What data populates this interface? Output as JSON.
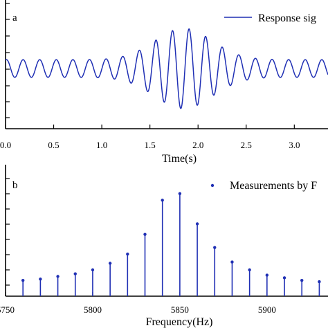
{
  "chart_data": [
    {
      "type": "line",
      "panel_label": "a",
      "xlabel": "Time(s)",
      "ylabel": "",
      "xlim": [
        0.0,
        3.35
      ],
      "x_ticks": [
        "0.0",
        "0.5",
        "1.0",
        "1.5",
        "2.0",
        "2.5",
        "3.0"
      ],
      "x_tick_values": [
        0.0,
        0.5,
        1.0,
        1.5,
        2.0,
        2.5,
        3.0
      ],
      "series": [
        {
          "name": "Response sig",
          "color": "#1f2fb4",
          "frequency_hz": 5.8,
          "approx_envelope": "amplitude ~0.25 at edges rising to ~1.0 near t=1.85 s"
        }
      ],
      "legend": "top-right",
      "grid": false
    },
    {
      "type": "stem",
      "panel_label": "b",
      "xlabel": "Frequency(Hz)",
      "ylabel": "",
      "xlim": [
        5750,
        5935
      ],
      "x_ticks": [
        "5750",
        "5800",
        "5850",
        "5900"
      ],
      "x_tick_values": [
        5750,
        5800,
        5850,
        5900
      ],
      "categories": [
        5760,
        5770,
        5780,
        5790,
        5800,
        5810,
        5820,
        5830,
        5840,
        5850,
        5860,
        5870,
        5880,
        5890,
        5900,
        5910,
        5920,
        5930
      ],
      "values": [
        0.12,
        0.13,
        0.15,
        0.17,
        0.2,
        0.25,
        0.32,
        0.47,
        0.73,
        0.78,
        0.55,
        0.37,
        0.26,
        0.2,
        0.16,
        0.14,
        0.12,
        0.11
      ],
      "ylim": [
        0,
        1.0
      ],
      "series": [
        {
          "name": "Measurements by F",
          "color": "#1f2fb4"
        }
      ],
      "legend": "top-right",
      "grid": false
    }
  ]
}
